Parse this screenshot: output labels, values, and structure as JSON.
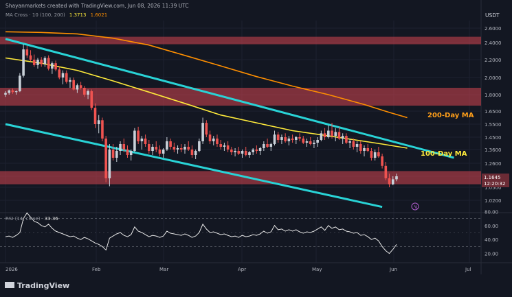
{
  "header": {
    "credit": "Shayanmarkets created with TradingView.com, Jun 08, 2026 11:39 UTC",
    "indicator_name": "MA Cross · 10 (100, 200)",
    "ma100_value": "1.3713",
    "ma200_value": "1.6021",
    "currency": "USDT"
  },
  "footer": {
    "logo_text": "TradingView"
  },
  "price_badge": {
    "price": "1.1645",
    "countdown": "12:20:32"
  },
  "annotations": {
    "ma200_label": "200-Day MA",
    "ma100_label": "100-Day MA"
  },
  "rsi": {
    "label": "RSI (14, close)",
    "value": "33.36",
    "ticks": [
      "80.00",
      "60.00",
      "40.00",
      "20.00"
    ]
  },
  "colors": {
    "background": "#131722",
    "up": "#c9d1d9",
    "down": "#ef5350",
    "ma100": "#ffeb3b",
    "ma200": "#ff8f00",
    "channel": "#29d3d6",
    "zone": "#d64550",
    "rsi": "#e8e8e8"
  },
  "chart_data": {
    "type": "candlestick",
    "x_ticks": [
      "2026",
      "Feb",
      "Mar",
      "Apr",
      "May",
      "Jun",
      "Jul"
    ],
    "y_ticks": [
      "2.6000",
      "2.4000",
      "2.2000",
      "2.0000",
      "1.8000",
      "1.6500",
      "1.5500",
      "1.4500",
      "1.3600",
      "1.2600",
      "1.1600",
      "1.0500",
      "1.0200"
    ],
    "ohlc": [
      [
        1.8,
        1.84,
        1.78,
        1.82
      ],
      [
        1.82,
        1.86,
        1.8,
        1.85
      ],
      [
        1.85,
        1.87,
        1.81,
        1.83
      ],
      [
        1.83,
        1.85,
        1.8,
        1.84
      ],
      [
        1.84,
        2.05,
        1.83,
        2.02
      ],
      [
        2.02,
        2.38,
        2.0,
        2.32
      ],
      [
        2.32,
        2.36,
        2.22,
        2.25
      ],
      [
        2.25,
        2.31,
        2.18,
        2.2
      ],
      [
        2.2,
        2.26,
        2.12,
        2.14
      ],
      [
        2.14,
        2.22,
        2.1,
        2.2
      ],
      [
        2.2,
        2.23,
        2.12,
        2.15
      ],
      [
        2.15,
        2.24,
        2.12,
        2.22
      ],
      [
        2.22,
        2.25,
        2.08,
        2.1
      ],
      [
        2.1,
        2.18,
        2.04,
        2.16
      ],
      [
        2.16,
        2.19,
        2.07,
        2.09
      ],
      [
        2.09,
        2.12,
        1.98,
        2.0
      ],
      [
        2.0,
        2.08,
        1.92,
        2.05
      ],
      [
        2.05,
        2.08,
        1.93,
        1.95
      ],
      [
        1.95,
        2.0,
        1.88,
        1.97
      ],
      [
        1.97,
        2.0,
        1.85,
        1.86
      ],
      [
        1.86,
        1.93,
        1.82,
        1.91
      ],
      [
        1.91,
        1.95,
        1.86,
        1.88
      ],
      [
        1.88,
        1.9,
        1.78,
        1.8
      ],
      [
        1.8,
        1.86,
        1.76,
        1.84
      ],
      [
        1.84,
        1.86,
        1.66,
        1.68
      ],
      [
        1.68,
        1.72,
        1.52,
        1.55
      ],
      [
        1.55,
        1.62,
        1.48,
        1.58
      ],
      [
        1.58,
        1.6,
        1.42,
        1.44
      ],
      [
        1.44,
        1.46,
        1.1,
        1.14
      ],
      [
        1.14,
        1.4,
        1.06,
        1.36
      ],
      [
        1.36,
        1.4,
        1.28,
        1.3
      ],
      [
        1.3,
        1.38,
        1.27,
        1.35
      ],
      [
        1.35,
        1.42,
        1.32,
        1.4
      ],
      [
        1.4,
        1.44,
        1.34,
        1.36
      ],
      [
        1.36,
        1.39,
        1.3,
        1.32
      ],
      [
        1.32,
        1.36,
        1.28,
        1.35
      ],
      [
        1.35,
        1.52,
        1.34,
        1.5
      ],
      [
        1.5,
        1.53,
        1.4,
        1.42
      ],
      [
        1.42,
        1.46,
        1.36,
        1.44
      ],
      [
        1.44,
        1.47,
        1.38,
        1.4
      ],
      [
        1.4,
        1.43,
        1.33,
        1.35
      ],
      [
        1.35,
        1.4,
        1.32,
        1.38
      ],
      [
        1.38,
        1.42,
        1.34,
        1.36
      ],
      [
        1.36,
        1.39,
        1.31,
        1.33
      ],
      [
        1.33,
        1.37,
        1.3,
        1.36
      ],
      [
        1.36,
        1.45,
        1.35,
        1.42
      ],
      [
        1.42,
        1.44,
        1.36,
        1.38
      ],
      [
        1.38,
        1.41,
        1.34,
        1.36
      ],
      [
        1.36,
        1.39,
        1.33,
        1.37
      ],
      [
        1.37,
        1.4,
        1.34,
        1.36
      ],
      [
        1.36,
        1.4,
        1.33,
        1.38
      ],
      [
        1.38,
        1.42,
        1.35,
        1.36
      ],
      [
        1.36,
        1.39,
        1.3,
        1.32
      ],
      [
        1.32,
        1.36,
        1.29,
        1.35
      ],
      [
        1.35,
        1.44,
        1.34,
        1.42
      ],
      [
        1.42,
        1.6,
        1.4,
        1.56
      ],
      [
        1.56,
        1.58,
        1.45,
        1.47
      ],
      [
        1.47,
        1.5,
        1.4,
        1.42
      ],
      [
        1.42,
        1.46,
        1.39,
        1.44
      ],
      [
        1.44,
        1.47,
        1.38,
        1.4
      ],
      [
        1.4,
        1.43,
        1.36,
        1.38
      ],
      [
        1.38,
        1.41,
        1.35,
        1.39
      ],
      [
        1.39,
        1.42,
        1.34,
        1.36
      ],
      [
        1.36,
        1.38,
        1.32,
        1.34
      ],
      [
        1.34,
        1.37,
        1.31,
        1.35
      ],
      [
        1.35,
        1.38,
        1.32,
        1.33
      ],
      [
        1.33,
        1.36,
        1.3,
        1.35
      ],
      [
        1.35,
        1.38,
        1.31,
        1.32
      ],
      [
        1.32,
        1.35,
        1.3,
        1.34
      ],
      [
        1.34,
        1.37,
        1.32,
        1.36
      ],
      [
        1.36,
        1.39,
        1.33,
        1.35
      ],
      [
        1.35,
        1.38,
        1.32,
        1.37
      ],
      [
        1.37,
        1.42,
        1.35,
        1.4
      ],
      [
        1.4,
        1.44,
        1.37,
        1.38
      ],
      [
        1.38,
        1.41,
        1.35,
        1.4
      ],
      [
        1.4,
        1.5,
        1.39,
        1.47
      ],
      [
        1.47,
        1.49,
        1.41,
        1.43
      ],
      [
        1.43,
        1.47,
        1.4,
        1.45
      ],
      [
        1.45,
        1.48,
        1.41,
        1.42
      ],
      [
        1.42,
        1.46,
        1.39,
        1.44
      ],
      [
        1.44,
        1.47,
        1.41,
        1.43
      ],
      [
        1.43,
        1.46,
        1.4,
        1.45
      ],
      [
        1.45,
        1.48,
        1.42,
        1.44
      ],
      [
        1.44,
        1.46,
        1.4,
        1.41
      ],
      [
        1.41,
        1.44,
        1.38,
        1.42
      ],
      [
        1.42,
        1.45,
        1.39,
        1.4
      ],
      [
        1.4,
        1.43,
        1.37,
        1.41
      ],
      [
        1.41,
        1.45,
        1.38,
        1.43
      ],
      [
        1.43,
        1.5,
        1.42,
        1.48
      ],
      [
        1.48,
        1.52,
        1.43,
        1.45
      ],
      [
        1.45,
        1.54,
        1.44,
        1.5
      ],
      [
        1.5,
        1.56,
        1.44,
        1.46
      ],
      [
        1.46,
        1.52,
        1.42,
        1.49
      ],
      [
        1.49,
        1.53,
        1.43,
        1.44
      ],
      [
        1.44,
        1.48,
        1.4,
        1.46
      ],
      [
        1.46,
        1.48,
        1.4,
        1.41
      ],
      [
        1.41,
        1.44,
        1.37,
        1.42
      ],
      [
        1.42,
        1.44,
        1.36,
        1.38
      ],
      [
        1.38,
        1.42,
        1.34,
        1.4
      ],
      [
        1.4,
        1.42,
        1.33,
        1.35
      ],
      [
        1.35,
        1.39,
        1.31,
        1.37
      ],
      [
        1.37,
        1.4,
        1.34,
        1.35
      ],
      [
        1.35,
        1.37,
        1.28,
        1.3
      ],
      [
        1.3,
        1.36,
        1.28,
        1.34
      ],
      [
        1.34,
        1.38,
        1.3,
        1.31
      ],
      [
        1.31,
        1.33,
        1.22,
        1.24
      ],
      [
        1.24,
        1.27,
        1.12,
        1.14
      ],
      [
        1.14,
        1.18,
        1.05,
        1.08
      ],
      [
        1.08,
        1.16,
        1.07,
        1.13
      ],
      [
        1.13,
        1.18,
        1.11,
        1.16
      ]
    ],
    "ma100": [
      [
        0,
        2.22
      ],
      [
        10,
        2.16
      ],
      [
        20,
        2.08
      ],
      [
        30,
        1.96
      ],
      [
        40,
        1.83
      ],
      [
        50,
        1.72
      ],
      [
        60,
        1.62
      ],
      [
        70,
        1.56
      ],
      [
        80,
        1.5
      ],
      [
        90,
        1.46
      ],
      [
        100,
        1.42
      ],
      [
        105,
        1.4
      ],
      [
        112,
        1.37
      ]
    ],
    "ma200": [
      [
        0,
        2.55
      ],
      [
        10,
        2.54
      ],
      [
        20,
        2.52
      ],
      [
        30,
        2.46
      ],
      [
        40,
        2.37
      ],
      [
        50,
        2.25
      ],
      [
        60,
        2.13
      ],
      [
        70,
        2.01
      ],
      [
        80,
        1.9
      ],
      [
        90,
        1.8
      ],
      [
        100,
        1.71
      ],
      [
        107,
        1.64
      ],
      [
        112,
        1.6
      ]
    ],
    "channel_upper": [
      [
        0,
        2.45
      ],
      [
        125,
        1.3
      ]
    ],
    "channel_lower": [
      [
        0,
        1.55
      ],
      [
        105,
        0.98
      ]
    ],
    "zones": [
      [
        2.38,
        2.48
      ],
      [
        1.7,
        1.88
      ],
      [
        1.08,
        1.2
      ]
    ],
    "rsi_series": [
      44,
      45,
      43,
      46,
      50,
      70,
      78,
      72,
      66,
      64,
      60,
      58,
      62,
      56,
      52,
      50,
      48,
      46,
      44,
      45,
      42,
      40,
      43,
      41,
      38,
      35,
      33,
      30,
      25,
      42,
      45,
      48,
      50,
      46,
      44,
      47,
      58,
      52,
      50,
      47,
      44,
      46,
      45,
      43,
      45,
      52,
      49,
      48,
      47,
      46,
      48,
      46,
      43,
      45,
      50,
      62,
      55,
      50,
      51,
      49,
      47,
      48,
      46,
      44,
      45,
      43,
      46,
      44,
      45,
      47,
      46,
      48,
      52,
      49,
      51,
      60,
      54,
      55,
      52,
      54,
      52,
      54,
      51,
      49,
      51,
      50,
      52,
      55,
      58,
      53,
      60,
      56,
      58,
      54,
      55,
      52,
      51,
      49,
      50,
      46,
      47,
      44,
      40,
      42,
      38,
      30,
      24,
      20,
      26,
      33
    ]
  }
}
